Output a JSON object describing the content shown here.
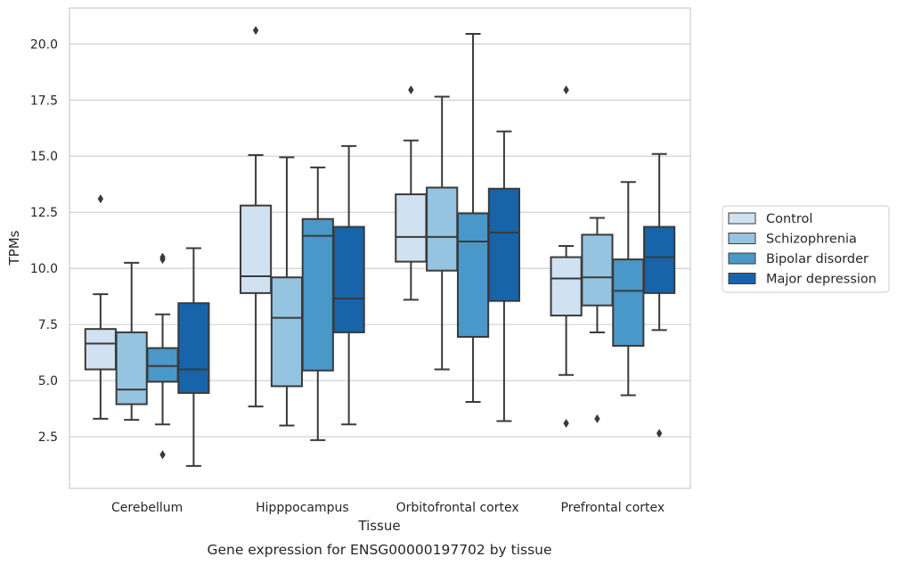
{
  "chart_data": {
    "type": "box",
    "xlabel": "Tissue",
    "ylabel": "TPMs",
    "caption": "Gene expression for ENSG00000197702 by tissue",
    "ylim": [
      0.2,
      21.6
    ],
    "yticks": [
      "2.5",
      "5.0",
      "7.5",
      "10.0",
      "12.5",
      "15.0",
      "17.5",
      "20.0"
    ],
    "grid": true,
    "legend_position": "right",
    "categories": [
      "Cerebellum",
      "Hipppocampus",
      "Orbitofrontal cortex",
      "Prefrontal cortex"
    ],
    "series": [
      {
        "name": "Control",
        "color": "#d0e1f2",
        "boxes": [
          {
            "whislo": 3.3,
            "q1": 5.5,
            "med": 6.65,
            "q3": 7.3,
            "whishi": 8.85,
            "fliers": [
              13.1
            ]
          },
          {
            "whislo": 3.85,
            "q1": 8.9,
            "med": 9.65,
            "q3": 12.8,
            "whishi": 15.05,
            "fliers": [
              20.6
            ]
          },
          {
            "whislo": 8.6,
            "q1": 10.3,
            "med": 11.4,
            "q3": 13.3,
            "whishi": 15.7,
            "fliers": [
              17.95
            ]
          },
          {
            "whislo": 5.25,
            "q1": 7.9,
            "med": 9.55,
            "q3": 10.5,
            "whishi": 11.0,
            "fliers": [
              17.95,
              3.1
            ]
          }
        ]
      },
      {
        "name": "Schizophrenia",
        "color": "#94c4df",
        "boxes": [
          {
            "whislo": 3.25,
            "q1": 3.95,
            "med": 4.6,
            "q3": 7.15,
            "whishi": 10.25,
            "fliers": []
          },
          {
            "whislo": 3.0,
            "q1": 4.75,
            "med": 7.8,
            "q3": 9.6,
            "whishi": 14.95,
            "fliers": []
          },
          {
            "whislo": 5.5,
            "q1": 9.9,
            "med": 11.4,
            "q3": 13.6,
            "whishi": 17.65,
            "fliers": []
          },
          {
            "whislo": 7.15,
            "q1": 8.35,
            "med": 9.6,
            "q3": 11.5,
            "whishi": 12.25,
            "fliers": [
              3.3
            ]
          }
        ]
      },
      {
        "name": "Bipolar disorder",
        "color": "#4a98c9",
        "boxes": [
          {
            "whislo": 3.05,
            "q1": 4.95,
            "med": 5.65,
            "q3": 6.45,
            "whishi": 7.95,
            "fliers": [
              10.5,
              10.4,
              1.7
            ]
          },
          {
            "whislo": 2.35,
            "q1": 5.45,
            "med": 11.45,
            "q3": 12.2,
            "whishi": 14.5,
            "fliers": []
          },
          {
            "whislo": 4.05,
            "q1": 6.95,
            "med": 11.2,
            "q3": 12.45,
            "whishi": 20.45,
            "fliers": []
          },
          {
            "whislo": 4.35,
            "q1": 6.55,
            "med": 9.0,
            "q3": 10.4,
            "whishi": 13.85,
            "fliers": []
          }
        ]
      },
      {
        "name": "Major depression",
        "color": "#1764ab",
        "boxes": [
          {
            "whislo": 1.2,
            "q1": 4.45,
            "med": 5.5,
            "q3": 8.45,
            "whishi": 10.9,
            "fliers": []
          },
          {
            "whislo": 3.05,
            "q1": 7.15,
            "med": 8.65,
            "q3": 11.85,
            "whishi": 15.45,
            "fliers": []
          },
          {
            "whislo": 3.2,
            "q1": 8.55,
            "med": 11.6,
            "q3": 13.55,
            "whishi": 16.1,
            "fliers": []
          },
          {
            "whislo": 7.25,
            "q1": 8.9,
            "med": 10.5,
            "q3": 11.85,
            "whishi": 15.1,
            "fliers": [
              2.65
            ]
          }
        ]
      }
    ]
  }
}
